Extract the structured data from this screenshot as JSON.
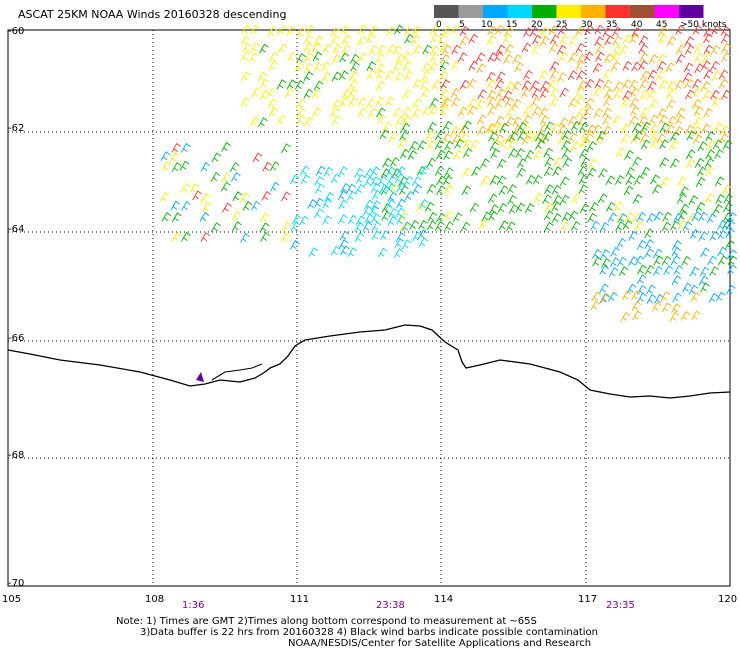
{
  "title": "ASCAT 25KM NOAA Winds 20160328 descending",
  "legend": {
    "labels": [
      "0",
      "5",
      "10",
      "15",
      "20",
      "25",
      "30",
      "35",
      "40",
      "45",
      ">50 knots"
    ],
    "colors": [
      "#555555",
      "#9a9a9a",
      "#00a8ff",
      "#00d8ff",
      "#00b000",
      "#ffee00",
      "#ffb000",
      "#ff3030",
      "#a05030",
      "#ff00ff",
      "#6000a0"
    ]
  },
  "latitudes": [
    "-60",
    "-62",
    "-64",
    "-66",
    "-68",
    "-70"
  ],
  "longitudes": [
    "105",
    "108",
    "111",
    "114",
    "117",
    "120"
  ],
  "times": [
    "1:36",
    "23:38",
    "23:35"
  ],
  "notes": {
    "line1": "Note: 1) Times are GMT 2)Times along bottom correspond to measurement at ~65S",
    "line2": "3)Data buffer is 22 hrs from 20160328 4) Black wind barbs indicate possible contamination",
    "line3": "NOAA/NESDIS/Center for Satellite Applications and Research"
  }
}
